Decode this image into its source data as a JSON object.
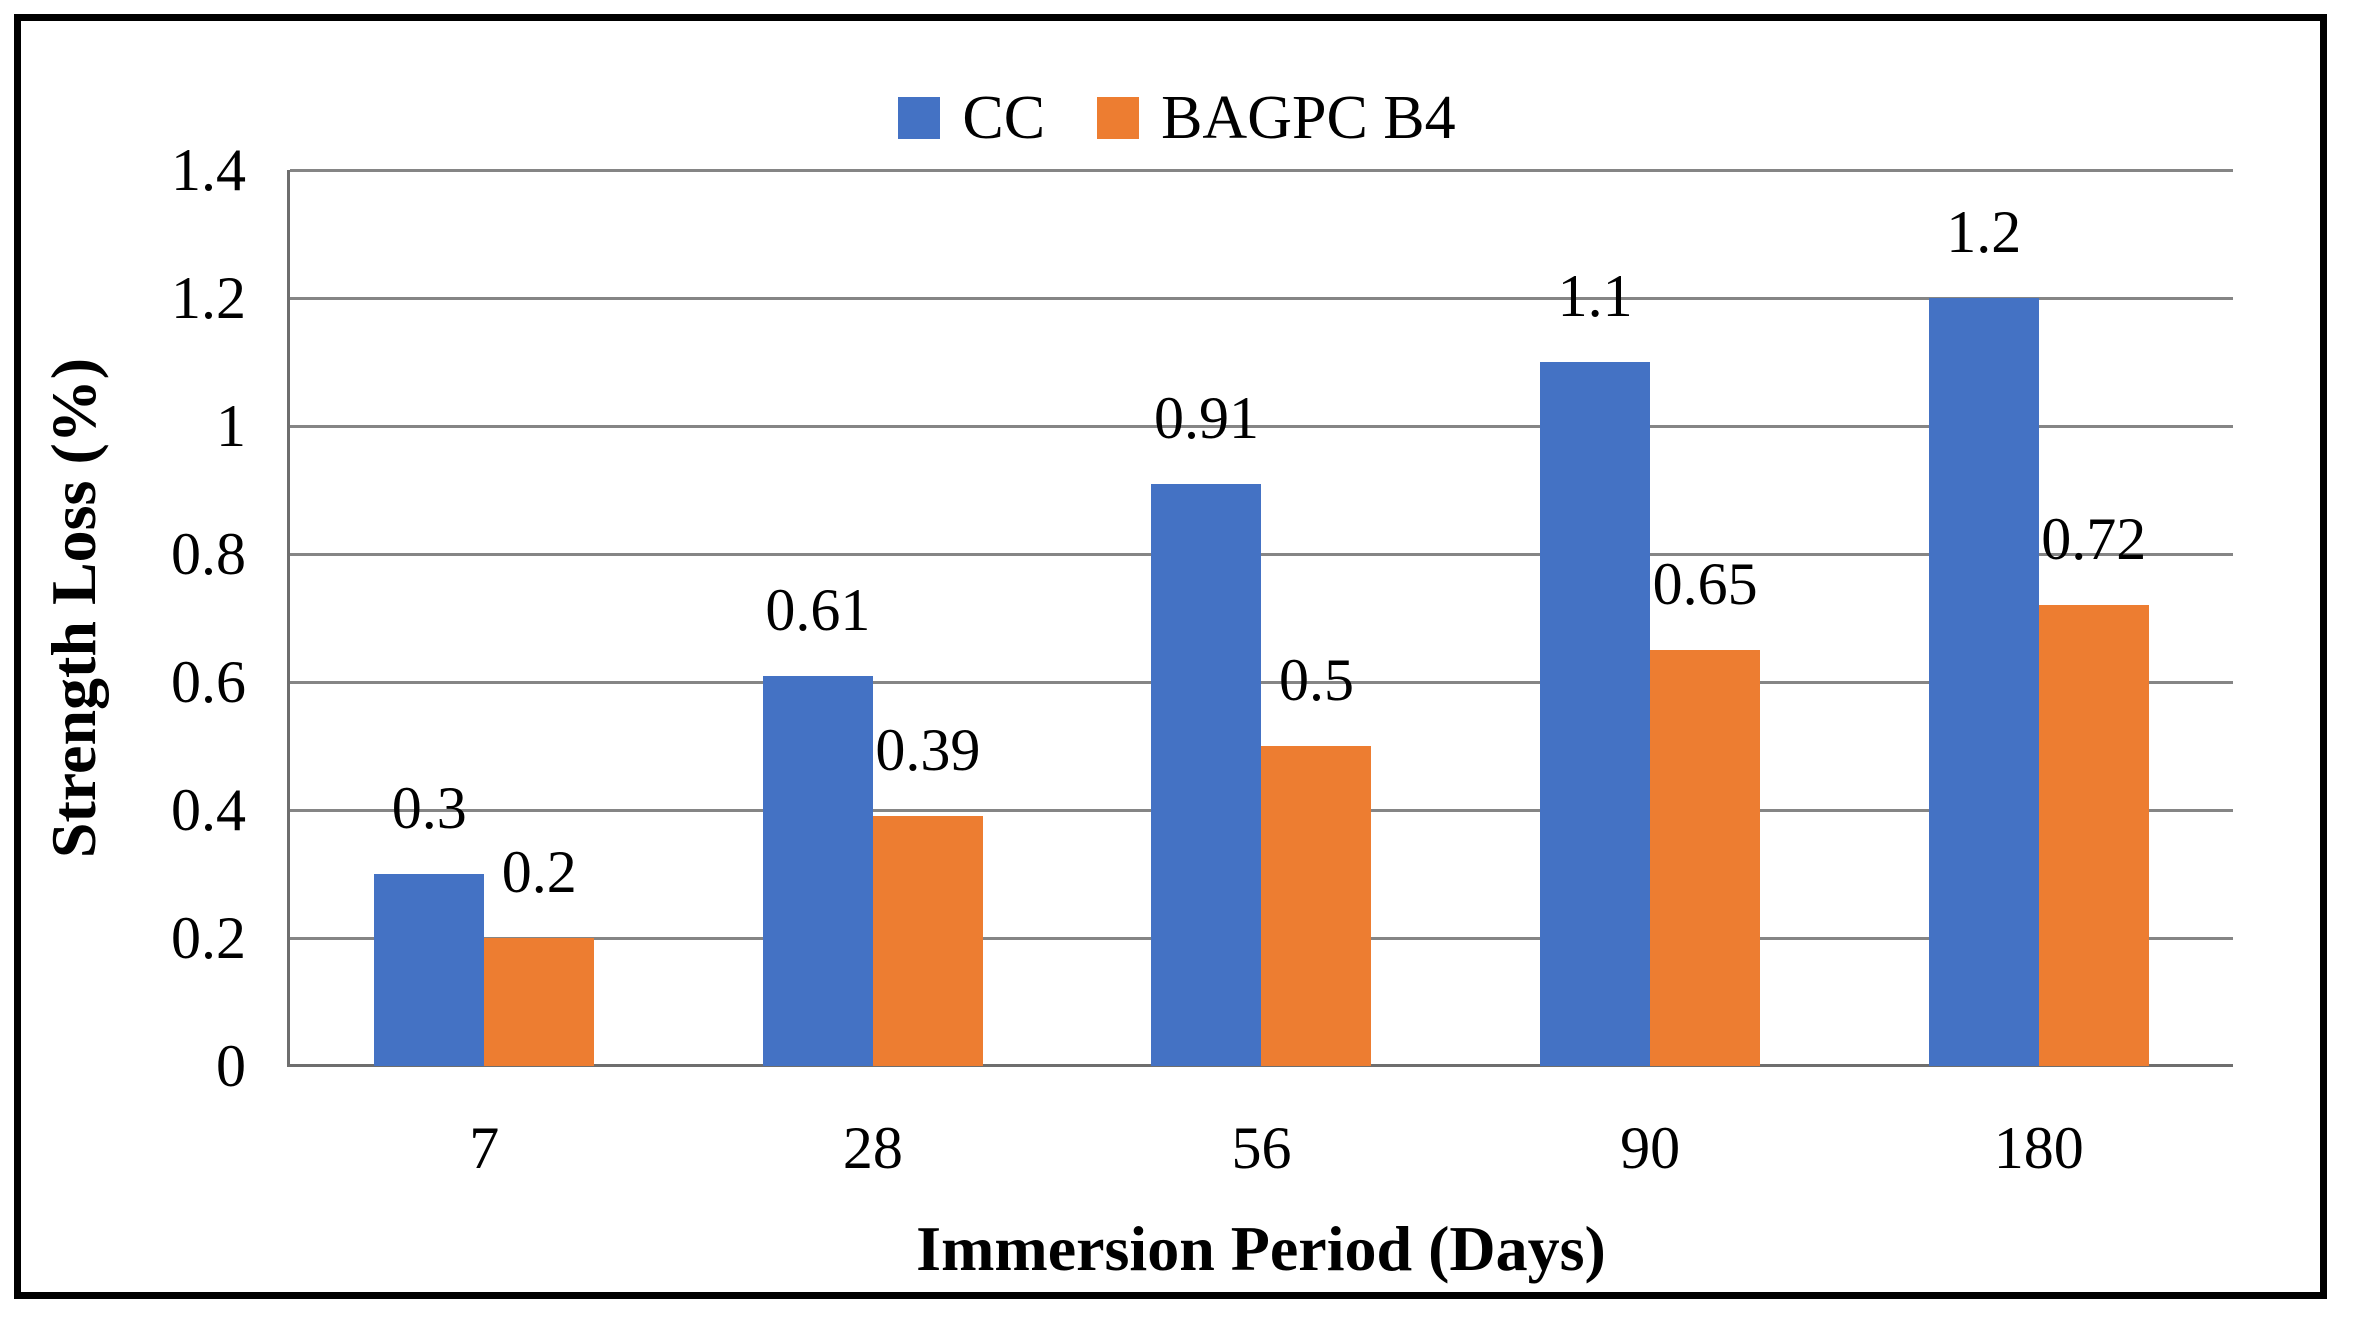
{
  "colors": {
    "series_cc": "#4472C4",
    "series_bagpc_b4": "#ED7D31",
    "gridline": "#858585",
    "axis_line": "#6E6E6E",
    "frame_border": "#000000",
    "background": "#FFFFFF",
    "text": "#000000"
  },
  "chart_data": {
    "type": "bar",
    "title": "",
    "xlabel": "Immersion Period (Days)",
    "ylabel": "Strength Loss (%)",
    "categories": [
      "7",
      "28",
      "56",
      "90",
      "180"
    ],
    "series": [
      {
        "name": "CC",
        "color": "#4472C4",
        "values": [
          0.3,
          0.61,
          0.91,
          1.1,
          1.2
        ],
        "labels": [
          "0.3",
          "0.61",
          "0.91",
          "1.1",
          "1.2"
        ]
      },
      {
        "name": "BAGPC B4",
        "color": "#ED7D31",
        "values": [
          0.2,
          0.39,
          0.5,
          0.65,
          0.72
        ],
        "labels": [
          "0.2",
          "0.39",
          "0.5",
          "0.65",
          "0.72"
        ]
      }
    ],
    "ylim": [
      0,
      1.4
    ],
    "yticks": [
      "0",
      "0.2",
      "0.4",
      "0.6",
      "0.8",
      "1",
      "1.2",
      "1.4"
    ],
    "grid": true,
    "legend_position": "top-center",
    "data_labels": true
  }
}
